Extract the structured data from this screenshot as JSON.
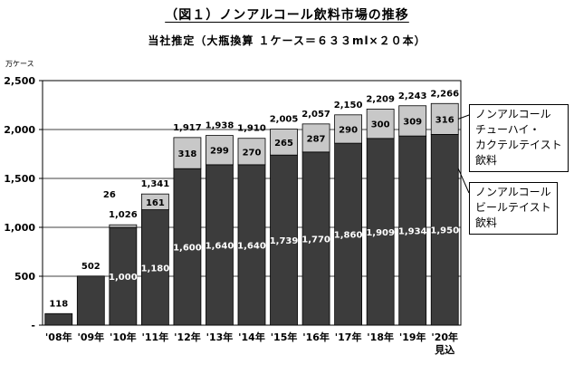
{
  "header": {
    "title": "（図１）ノンアルコール飲料市場の推移",
    "subtitle": "当社推定（大瓶換算 １ケース＝６３３ml×２０本）"
  },
  "chart_data": {
    "type": "bar",
    "stacked": true,
    "unit_label": "万ケース",
    "categories": [
      "'08年",
      "'09年",
      "'10年",
      "'11年",
      "'12年",
      "'13年",
      "'14年",
      "'15年",
      "'16年",
      "'17年",
      "'18年",
      "'19年",
      "'20年"
    ],
    "category_sublabels": [
      "",
      "",
      "",
      "",
      "",
      "",
      "",
      "",
      "",
      "",
      "",
      "",
      "見込"
    ],
    "series": [
      {
        "name": "ノンアルコール\nビールテイスト\n飲料",
        "color": "#3c3c3c",
        "values": [
          118,
          502,
          1000,
          1180,
          1600,
          1640,
          1640,
          1739,
          1770,
          1860,
          1909,
          1934,
          1950
        ],
        "value_labels": [
          "",
          "",
          "1,000",
          "1,180",
          "1,600",
          "1,640",
          "1,640",
          "1,739",
          "1,770",
          "1,860",
          "1,909",
          "1,934",
          "1,950"
        ]
      },
      {
        "name": "ノンアルコール\nチューハイ・\nカクテルテイスト\n飲料",
        "color": "#c8c8c8",
        "values": [
          0,
          0,
          26,
          161,
          318,
          299,
          270,
          265,
          287,
          290,
          300,
          309,
          316
        ],
        "value_labels": [
          "",
          "",
          "",
          "161",
          "318",
          "299",
          "270",
          "265",
          "287",
          "290",
          "300",
          "309",
          "316"
        ]
      }
    ],
    "totals": [
      "118",
      "502",
      "1,026",
      "1,341",
      "1,917",
      "1,938",
      "1,910",
      "2,005",
      "2,057",
      "2,150",
      "2,209",
      "2,243",
      "2,266"
    ],
    "annotations": [
      {
        "category": "'10年",
        "text": "26"
      }
    ],
    "y_ticks": [
      "-",
      "500",
      "1,000",
      "1,500",
      "2,000",
      "2,500"
    ],
    "ylim": [
      0,
      2500
    ],
    "grid": true,
    "legend_position": "right"
  }
}
